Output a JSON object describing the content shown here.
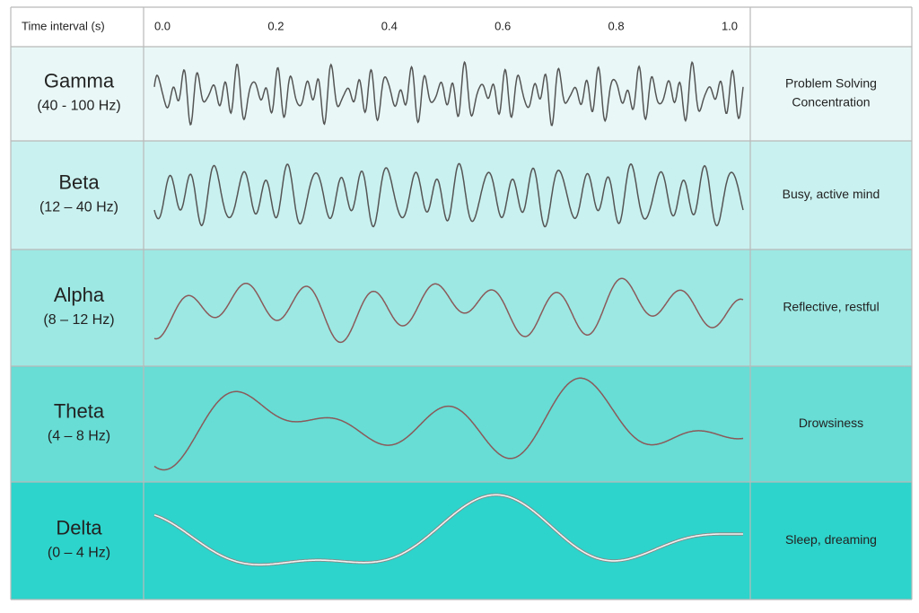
{
  "header": {
    "label": "Time interval (s)",
    "ticks": [
      "0.0",
      "0.2",
      "0.4",
      "0.6",
      "0.8",
      "1.0"
    ]
  },
  "rows": [
    {
      "name": "Gamma",
      "range": "(40 - 100 Hz)",
      "description": [
        "Problem Solving",
        "Concentration"
      ]
    },
    {
      "name": "Beta",
      "range": "(12 – 40 Hz)",
      "description": [
        "Busy, active mind"
      ]
    },
    {
      "name": "Alpha",
      "range": "(8 – 12 Hz)",
      "description": [
        "Reflective, restful"
      ]
    },
    {
      "name": "Theta",
      "range": "(4 – 8 Hz)",
      "description": [
        "Drowsiness"
      ]
    },
    {
      "name": "Delta",
      "range": "(0 – 4 Hz)",
      "description": [
        "Sleep, dreaming"
      ]
    }
  ]
}
